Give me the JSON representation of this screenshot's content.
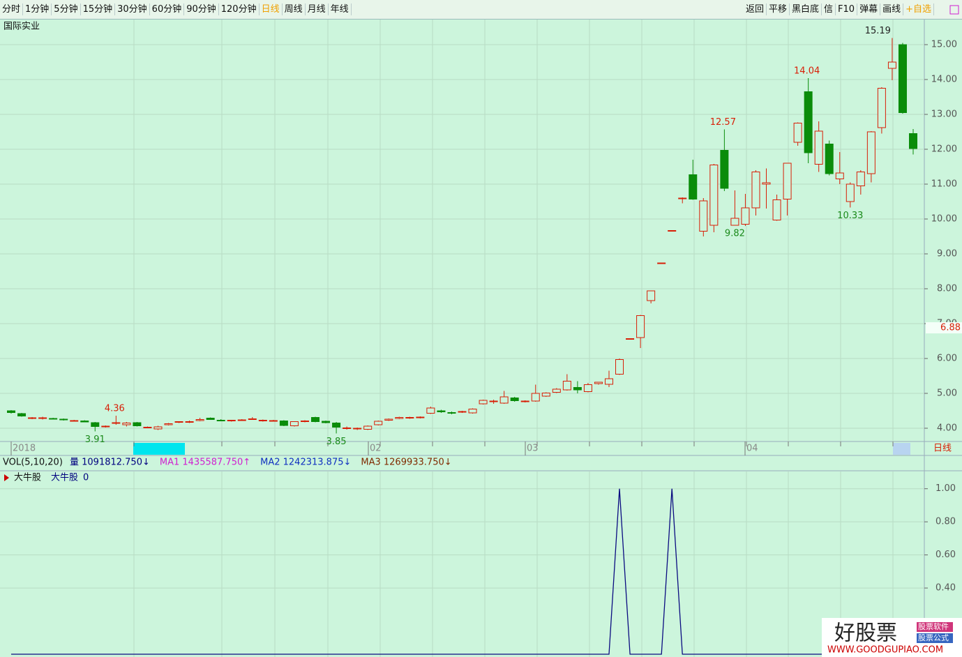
{
  "toolbar": {
    "left": [
      "分时",
      "1分钟",
      "5分钟",
      "15分钟",
      "30分钟",
      "60分钟",
      "90分钟",
      "120分钟",
      "日线",
      "周线",
      "月线",
      "年线"
    ],
    "right": [
      "返回",
      "平移",
      "黑白底",
      "信",
      "F10",
      "弹幕",
      "画线",
      "+自选"
    ]
  },
  "chart_data": {
    "type": "candlestick",
    "title": "国际实业",
    "period": "日线",
    "date_labels": [
      "2018",
      "02",
      "03",
      "04"
    ],
    "open": [
      4.5,
      4.42,
      4.28,
      4.28,
      4.28,
      4.26,
      4.22,
      4.21,
      4.16,
      4.04,
      4.14,
      4.1,
      4.16,
      4.02,
      3.98,
      4.1,
      4.17,
      4.17,
      4.22,
      4.29,
      4.23,
      4.21,
      4.23,
      4.26,
      4.21,
      4.21,
      4.21,
      4.07,
      4.19,
      4.31,
      4.2,
      4.15,
      4.0,
      3.98,
      3.97,
      4.1,
      4.23,
      4.28,
      4.29,
      4.3,
      4.43,
      4.5,
      4.45,
      4.46,
      4.44,
      4.7,
      4.77,
      4.72,
      4.87,
      4.77,
      4.78,
      4.92,
      5.03,
      5.1,
      5.17,
      5.05,
      5.28,
      5.26,
      5.55,
      6.57,
      6.6,
      7.66,
      8.74,
      9.67,
      10.58,
      11.27,
      9.65,
      9.82,
      11.97,
      9.82,
      9.85,
      10.32,
      11.0,
      9.97,
      10.57,
      12.2,
      13.65,
      11.57,
      12.15,
      11.15,
      10.5,
      10.95,
      11.3,
      12.62,
      14.32,
      15.0,
      12.45
    ],
    "high": [
      4.52,
      4.44,
      4.32,
      4.33,
      4.3,
      4.28,
      4.24,
      4.23,
      4.18,
      4.08,
      4.36,
      4.18,
      4.18,
      4.05,
      4.07,
      4.15,
      4.2,
      4.22,
      4.3,
      4.31,
      4.26,
      4.24,
      4.26,
      4.32,
      4.25,
      4.24,
      4.23,
      4.2,
      4.23,
      4.33,
      4.22,
      4.18,
      4.05,
      4.02,
      4.08,
      4.22,
      4.28,
      4.33,
      4.33,
      4.34,
      4.62,
      4.53,
      4.48,
      4.5,
      4.57,
      4.82,
      4.82,
      5.07,
      4.9,
      4.8,
      5.25,
      5.03,
      5.15,
      5.55,
      5.35,
      5.3,
      5.33,
      5.65,
      6.0,
      6.57,
      7.25,
      7.95,
      8.74,
      9.67,
      10.62,
      11.7,
      10.6,
      11.58,
      12.57,
      10.82,
      10.72,
      11.4,
      11.45,
      10.7,
      11.6,
      12.77,
      14.04,
      12.8,
      12.25,
      11.92,
      11.05,
      11.4,
      12.52,
      13.78,
      15.19,
      15.05,
      12.58
    ],
    "low": [
      4.42,
      4.33,
      4.26,
      4.25,
      4.25,
      4.22,
      4.2,
      4.17,
      3.91,
      4.02,
      4.1,
      4.05,
      4.05,
      4.0,
      3.95,
      4.08,
      4.15,
      4.15,
      4.2,
      4.24,
      4.2,
      4.19,
      4.21,
      4.24,
      4.19,
      4.19,
      4.06,
      4.05,
      4.17,
      4.17,
      4.14,
      3.85,
      3.96,
      3.95,
      3.95,
      4.08,
      4.21,
      4.26,
      4.27,
      4.28,
      4.41,
      4.44,
      4.4,
      4.44,
      4.42,
      4.68,
      4.7,
      4.7,
      4.76,
      4.74,
      4.76,
      4.9,
      5.01,
      5.08,
      5.0,
      5.03,
      5.25,
      5.18,
      5.53,
      6.57,
      6.3,
      7.58,
      8.74,
      9.67,
      10.45,
      10.55,
      9.5,
      9.62,
      10.8,
      9.82,
      9.8,
      10.1,
      10.3,
      9.95,
      10.1,
      12.1,
      11.6,
      11.35,
      11.25,
      11.0,
      10.33,
      10.7,
      11.05,
      12.45,
      13.98,
      13.02,
      11.85
    ],
    "close": [
      4.45,
      4.35,
      4.3,
      4.3,
      4.27,
      4.24,
      4.22,
      4.18,
      4.05,
      4.06,
      4.16,
      4.15,
      4.07,
      4.03,
      4.04,
      4.13,
      4.19,
      4.19,
      4.25,
      4.25,
      4.22,
      4.23,
      4.24,
      4.27,
      4.23,
      4.22,
      4.08,
      4.19,
      4.21,
      4.19,
      4.16,
      4.03,
      4.01,
      4.0,
      4.06,
      4.2,
      4.26,
      4.31,
      4.31,
      4.32,
      4.58,
      4.47,
      4.44,
      4.48,
      4.55,
      4.8,
      4.78,
      4.9,
      4.79,
      4.78,
      5.0,
      5.01,
      5.12,
      5.35,
      5.1,
      5.25,
      5.32,
      5.42,
      5.97,
      6.57,
      7.23,
      7.94,
      8.74,
      9.67,
      10.6,
      10.57,
      10.52,
      11.55,
      10.88,
      10.02,
      10.32,
      11.35,
      11.04,
      10.55,
      11.6,
      12.75,
      11.9,
      12.52,
      11.3,
      11.32,
      11.0,
      11.35,
      12.5,
      13.75,
      14.5,
      13.05,
      12.02
    ],
    "up_color": "#d81e06",
    "down_color": "#0a8c0a",
    "high_labels": [
      4.36,
      12.57,
      14.04,
      15.19
    ],
    "low_labels": [
      3.91,
      3.85,
      9.82,
      10.33
    ],
    "last_price": 6.88,
    "ylim": [
      3.62,
      15.72
    ],
    "yticks": [
      {
        "value": 4,
        "label": "4.00"
      },
      {
        "value": 5,
        "label": "5.00"
      },
      {
        "value": 6,
        "label": "6.00"
      },
      {
        "value": 7,
        "label": "7.00"
      },
      {
        "value": 8,
        "label": "8.00"
      },
      {
        "value": 9,
        "label": "9.00"
      },
      {
        "value": 10,
        "label": "10.00"
      },
      {
        "value": 11,
        "label": "11.00"
      },
      {
        "value": 12,
        "label": "12.00"
      },
      {
        "value": 13,
        "label": "13.00"
      },
      {
        "value": 14,
        "label": "14.00"
      },
      {
        "value": 15,
        "label": "15.00"
      }
    ],
    "volume": {
      "title": "VOL(5,10,20)",
      "items": [
        {
          "text": "量 1091812.750↓",
          "color": "#00007f"
        },
        {
          "text": "MA1 1435587.750↑",
          "color": "#d020d0"
        },
        {
          "text": "MA2 1242313.875↓",
          "color": "#1030c0"
        },
        {
          "text": "MA3 1269933.750↓",
          "color": "#7f2a00"
        }
      ]
    },
    "indicator": {
      "title": "大牛股",
      "name": "大牛股",
      "current": 0,
      "color": "#0a0a80",
      "values": [
        0,
        0,
        0,
        0,
        0,
        0,
        0,
        0,
        0,
        0,
        0,
        0,
        0,
        0,
        0,
        0,
        0,
        0,
        0,
        0,
        0,
        0,
        0,
        0,
        0,
        0,
        0,
        0,
        0,
        0,
        0,
        0,
        0,
        0,
        0,
        0,
        0,
        0,
        0,
        0,
        0,
        0,
        0,
        0,
        0,
        0,
        0,
        0,
        0,
        0,
        0,
        0,
        0,
        0,
        0,
        0,
        0,
        0,
        1,
        0,
        0,
        0,
        0,
        1,
        0,
        0,
        0,
        0,
        0,
        0,
        0,
        0,
        0,
        0,
        0,
        0,
        0,
        0,
        0,
        0,
        0,
        0,
        0,
        0,
        0,
        0,
        0
      ],
      "ylim": [
        0,
        1.1
      ],
      "yticks": [
        {
          "value": 0.4,
          "label": "0.40"
        },
        {
          "value": 0.6,
          "label": "0.60"
        },
        {
          "value": 0.8,
          "label": "0.80"
        },
        {
          "value": 1,
          "label": "1.00"
        }
      ]
    }
  },
  "watermark": {
    "brand": "好股票",
    "tag1": "股票软件",
    "tag2": "股票公式",
    "url": "WWW.GOODGUPIAO.COM"
  }
}
